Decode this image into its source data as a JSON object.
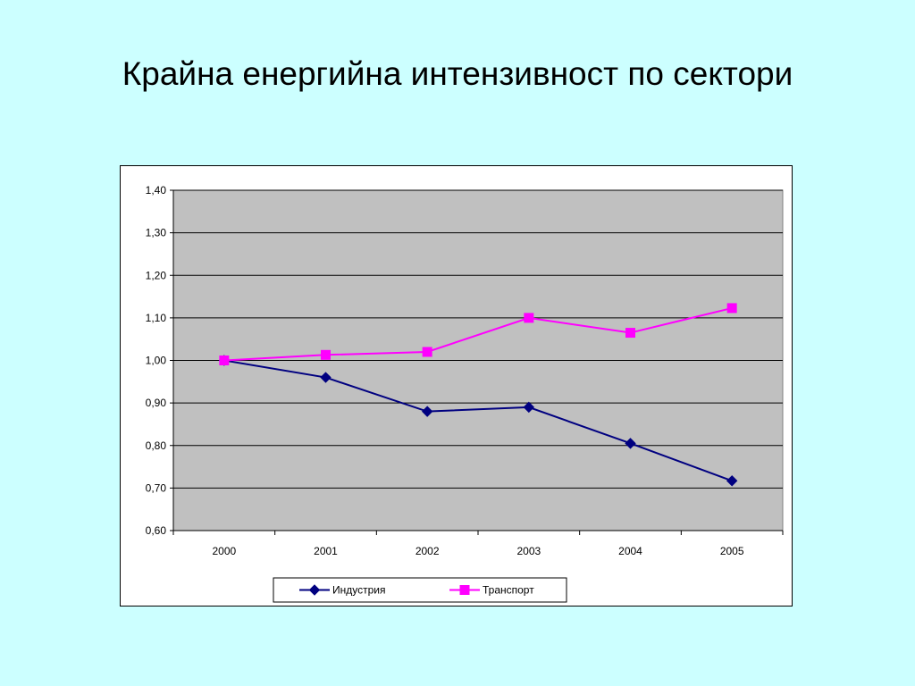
{
  "slide": {
    "title": "Крайна енергийна интензивност по сектори"
  },
  "chart_data": {
    "type": "line",
    "title": "",
    "xlabel": "",
    "ylabel": "",
    "categories": [
      "2000",
      "2001",
      "2002",
      "2003",
      "2004",
      "2005"
    ],
    "ylim": [
      0.6,
      1.4
    ],
    "yticks": [
      0.6,
      0.7,
      0.8,
      0.9,
      1.0,
      1.1,
      1.2,
      1.3,
      1.4
    ],
    "ytick_labels": [
      "0,60",
      "0,70",
      "0,80",
      "0,90",
      "1,00",
      "1,10",
      "1,20",
      "1,30",
      "1,40"
    ],
    "grid": true,
    "legend_position": "bottom",
    "plot_background": "#c0c0c0",
    "series": [
      {
        "name": "Индустрия",
        "values": [
          1.0,
          0.96,
          0.88,
          0.89,
          0.805,
          0.717
        ],
        "color": "#000080",
        "marker": "diamond"
      },
      {
        "name": "Транспорт",
        "values": [
          1.0,
          1.013,
          1.02,
          1.1,
          1.065,
          1.123
        ],
        "color": "#ff00ff",
        "marker": "square"
      }
    ]
  }
}
